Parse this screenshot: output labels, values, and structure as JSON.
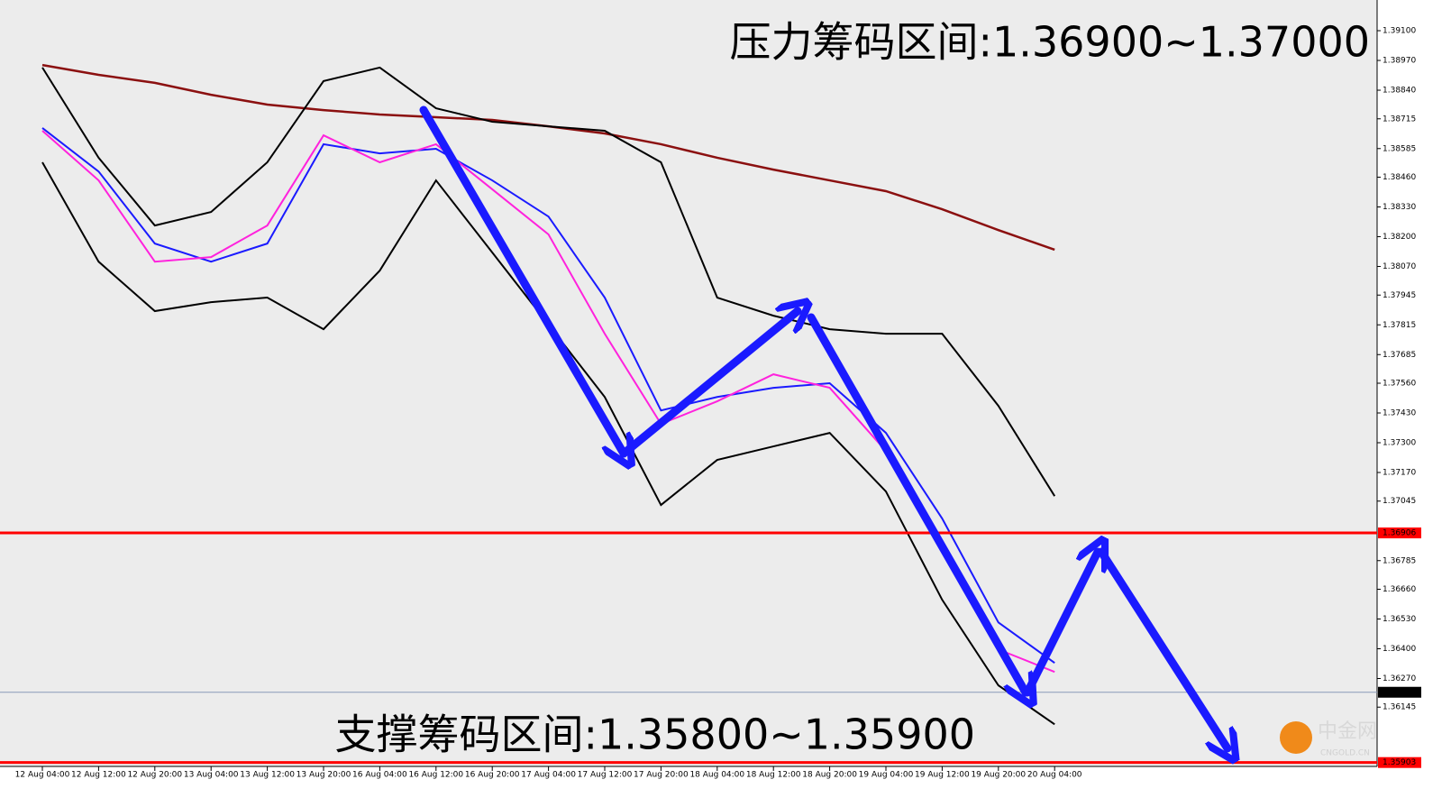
{
  "chart_data": {
    "type": "line",
    "annotations": [
      "压力筹码区间:1.36900~1.37000",
      "支撑筹码区间:1.35800~1.35900"
    ],
    "watermark": [
      "中金网",
      "CNGOLD.CN"
    ],
    "categories": [
      "12 Aug 04:00",
      "12 Aug 12:00",
      "12 Aug 20:00",
      "13 Aug 04:00",
      "13 Aug 12:00",
      "13 Aug 20:00",
      "16 Aug 04:00",
      "16 Aug 12:00",
      "16 Aug 20:00",
      "17 Aug 04:00",
      "17 Aug 12:00",
      "17 Aug 20:00",
      "18 Aug 04:00",
      "18 Aug 12:00",
      "18 Aug 20:00",
      "19 Aug 04:00",
      "19 Aug 12:00",
      "19 Aug 20:00",
      "20 Aug 04:00"
    ],
    "series": [
      {
        "color": "#8b1010",
        "values": [
          1.3895,
          1.38907,
          1.38872,
          1.3882,
          1.38777,
          1.38753,
          1.38734,
          1.38722,
          1.3871,
          1.38682,
          1.38651,
          1.38604,
          1.38545,
          1.38493,
          1.38446,
          1.38399,
          1.3832,
          1.38229,
          1.38143
        ]
      },
      {
        "color": "#000000",
        "values": [
          1.38939,
          1.38545,
          1.38249,
          1.38308,
          1.38525,
          1.3888,
          1.38939,
          1.38761,
          1.38702,
          1.38682,
          1.38663,
          1.38525,
          1.37934,
          1.37855,
          1.37796,
          1.37776,
          1.37776,
          1.37461,
          1.37067
        ]
      },
      {
        "color": "#000000",
        "values": [
          1.38525,
          1.38091,
          1.37875,
          1.37914,
          1.37934,
          1.37796,
          1.38052,
          1.38446,
          1.38131,
          1.37816,
          1.375,
          1.37028,
          1.37225,
          1.37284,
          1.37343,
          1.37087,
          1.36614,
          1.3624,
          1.3607
        ]
      },
      {
        "color": "#1a1aff",
        "values": [
          1.38675,
          1.38485,
          1.3817,
          1.38091,
          1.3817,
          1.38604,
          1.38564,
          1.38584,
          1.38446,
          1.38288,
          1.37934,
          1.37441,
          1.375,
          1.3754,
          1.3756,
          1.37343,
          1.36969,
          1.36515,
          1.36338
        ]
      },
      {
        "color": "#ff22dd",
        "values": [
          1.38663,
          1.38446,
          1.38091,
          1.38111,
          1.38249,
          1.38643,
          1.38525,
          1.38604,
          1.38407,
          1.3821,
          1.37776,
          1.37382,
          1.37481,
          1.37599,
          1.3754,
          1.37264,
          1.3685,
          1.36397,
          1.36299
        ]
      }
    ],
    "levels": [
      {
        "value": 1.36906,
        "color": "#ff0000"
      },
      {
        "value": 1.35903,
        "color": "#ff0000"
      },
      {
        "value": {
          "value": 1.3621,
          "label": "1.36210"
        },
        "color": "#8a9ab8"
      }
    ],
    "ylim": [
      1.35886,
      1.39234
    ],
    "yticks": [
      {
        "value": 1.391,
        "label": "1.39100"
      },
      {
        "value": 1.3897,
        "label": "1.38970"
      },
      {
        "value": 1.3884,
        "label": "1.38840"
      },
      1.38715,
      1.38585,
      {
        "value": 1.3846,
        "label": "1.38460"
      },
      {
        "value": 1.3833,
        "label": "1.38330"
      },
      {
        "value": 1.382,
        "label": "1.38200"
      },
      {
        "value": 1.3807,
        "label": "1.38070"
      },
      1.37945,
      1.37815,
      1.37685,
      {
        "value": 1.3756,
        "label": "1.37560"
      },
      {
        "value": 1.3743,
        "label": "1.37430"
      },
      {
        "value": 1.373,
        "label": "1.37300"
      },
      {
        "value": 1.3717,
        "label": "1.37170"
      },
      1.37045,
      1.36785,
      {
        "value": 1.3666,
        "label": "1.36660"
      },
      {
        "value": 1.3653,
        "label": "1.36530"
      },
      {
        "value": 1.364,
        "label": "1.36400"
      },
      {
        "value": 1.3627,
        "label": "1.36270"
      },
      1.36145
    ]
  }
}
